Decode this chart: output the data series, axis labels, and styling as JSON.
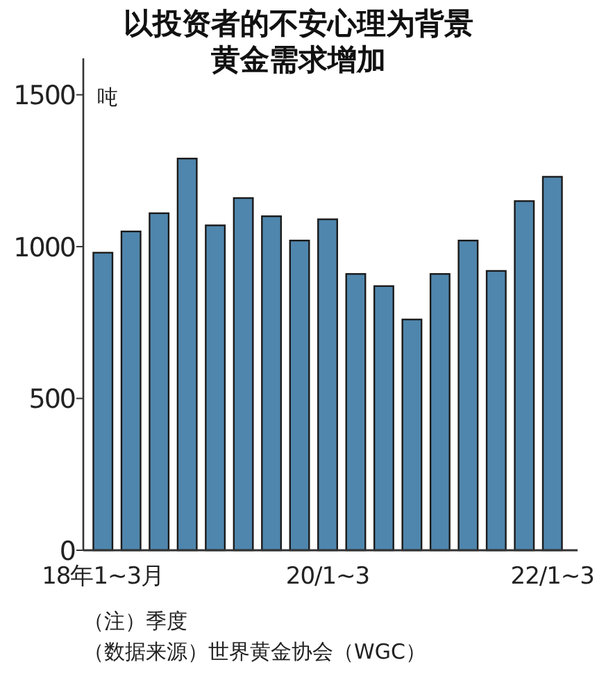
{
  "chart_data": {
    "type": "bar",
    "title": "以投资者的不安心理为背景黄金需求增加",
    "ylabel": "吨",
    "categories": [
      "18年1~3月",
      null,
      null,
      null,
      null,
      null,
      null,
      null,
      "20/1~3",
      null,
      null,
      null,
      null,
      null,
      null,
      null,
      "22/1~3"
    ],
    "values": [
      980,
      1050,
      1110,
      1290,
      1070,
      1160,
      1100,
      1020,
      1090,
      910,
      870,
      760,
      910,
      1020,
      920,
      1150,
      1230
    ],
    "color": "#4f86ad",
    "ylim": [
      0,
      1620
    ],
    "yticks": [
      0,
      500,
      1000,
      1500
    ],
    "grid": false,
    "annotations": [
      "（注）季度",
      "（数据来源）世界黄金协会（WGC）"
    ]
  }
}
